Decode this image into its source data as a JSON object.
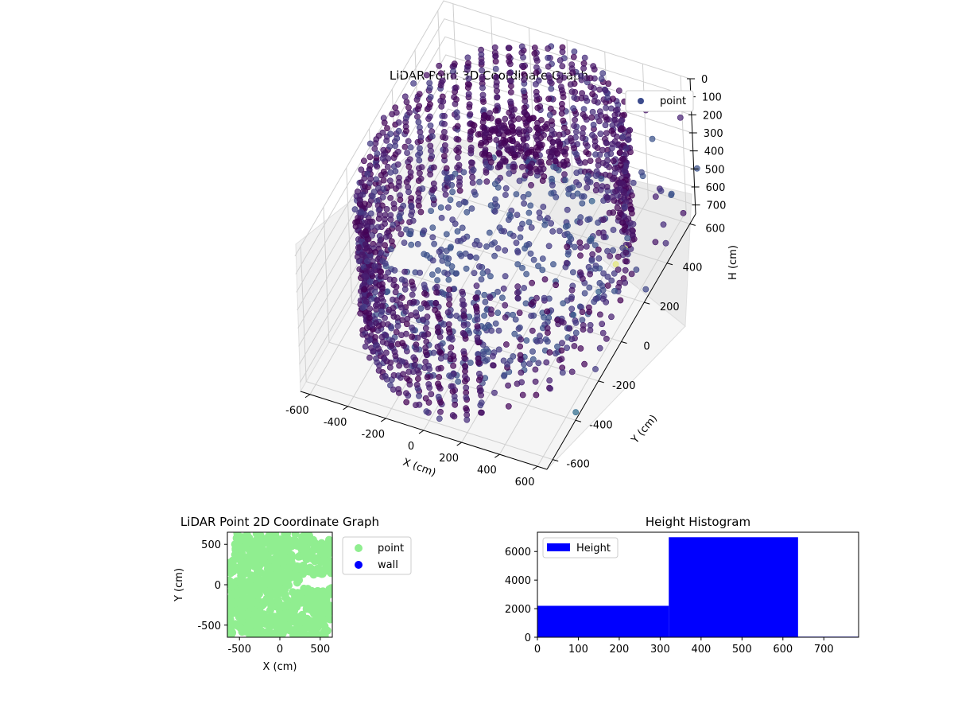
{
  "chart_data": [
    {
      "type": "scatter3d",
      "title": "LiDAR Point 3D Coordinate Graph",
      "xlabel": "X (cm)",
      "ylabel": "Y (cm)",
      "zlabel": "H (cm)",
      "xticks": [
        "-600",
        "-400",
        "-200",
        "0",
        "200",
        "400",
        "600"
      ],
      "yticks": [
        "-600",
        "-400",
        "-200",
        "0",
        "200",
        "400",
        "600"
      ],
      "zticks": [
        "0",
        "100",
        "200",
        "300",
        "400",
        "500",
        "600",
        "700"
      ],
      "xlim": [
        -650,
        650
      ],
      "ylim": [
        -650,
        650
      ],
      "zlim": [
        0,
        750
      ],
      "zaxis_inverted": true,
      "grid": true,
      "colormap": "viridis",
      "legend": {
        "placement": "top-right",
        "entries": [
          "point"
        ],
        "marker_color": "#3b4a8c"
      },
      "series": [
        {
          "name": "point",
          "shape": "circular wall",
          "radius_cm": 600,
          "height_range_cm": [
            0,
            700
          ],
          "rings": 60,
          "levels": 30
        }
      ]
    },
    {
      "type": "scatter",
      "title": "LiDAR Point 2D Coordinate Graph",
      "xlabel": "X (cm)",
      "ylabel": "Y (cm)",
      "xticks": [
        "-500",
        "0",
        "500"
      ],
      "yticks": [
        "500",
        "0",
        "-500"
      ],
      "xlim": [
        -650,
        650
      ],
      "ylim": [
        -650,
        650
      ],
      "legend": {
        "placement": "outside-right",
        "entries": [
          "point",
          "wall"
        ]
      },
      "series": [
        {
          "name": "point",
          "color": "#90ee90",
          "extent_cm": [
            -640,
            640
          ]
        },
        {
          "name": "wall",
          "color": "#0000ff",
          "count": 0
        }
      ]
    },
    {
      "type": "bar",
      "title": "Height Histogram",
      "xlabel": "",
      "ylabel": "",
      "xticks": [
        "0",
        "100",
        "200",
        "300",
        "400",
        "500",
        "600",
        "700"
      ],
      "yticks": [
        "0",
        "2000",
        "4000",
        "6000"
      ],
      "xlim": [
        0,
        785
      ],
      "ylim": [
        0,
        7350
      ],
      "color": "#0000ff",
      "legend": {
        "placement": "top-left",
        "entries": [
          "Height"
        ]
      },
      "bins": [
        {
          "start": 0,
          "end": 321,
          "count": 2200
        },
        {
          "start": 321,
          "end": 637,
          "count": 7000
        },
        {
          "start": 637,
          "end": 785,
          "count": 40
        }
      ]
    }
  ]
}
